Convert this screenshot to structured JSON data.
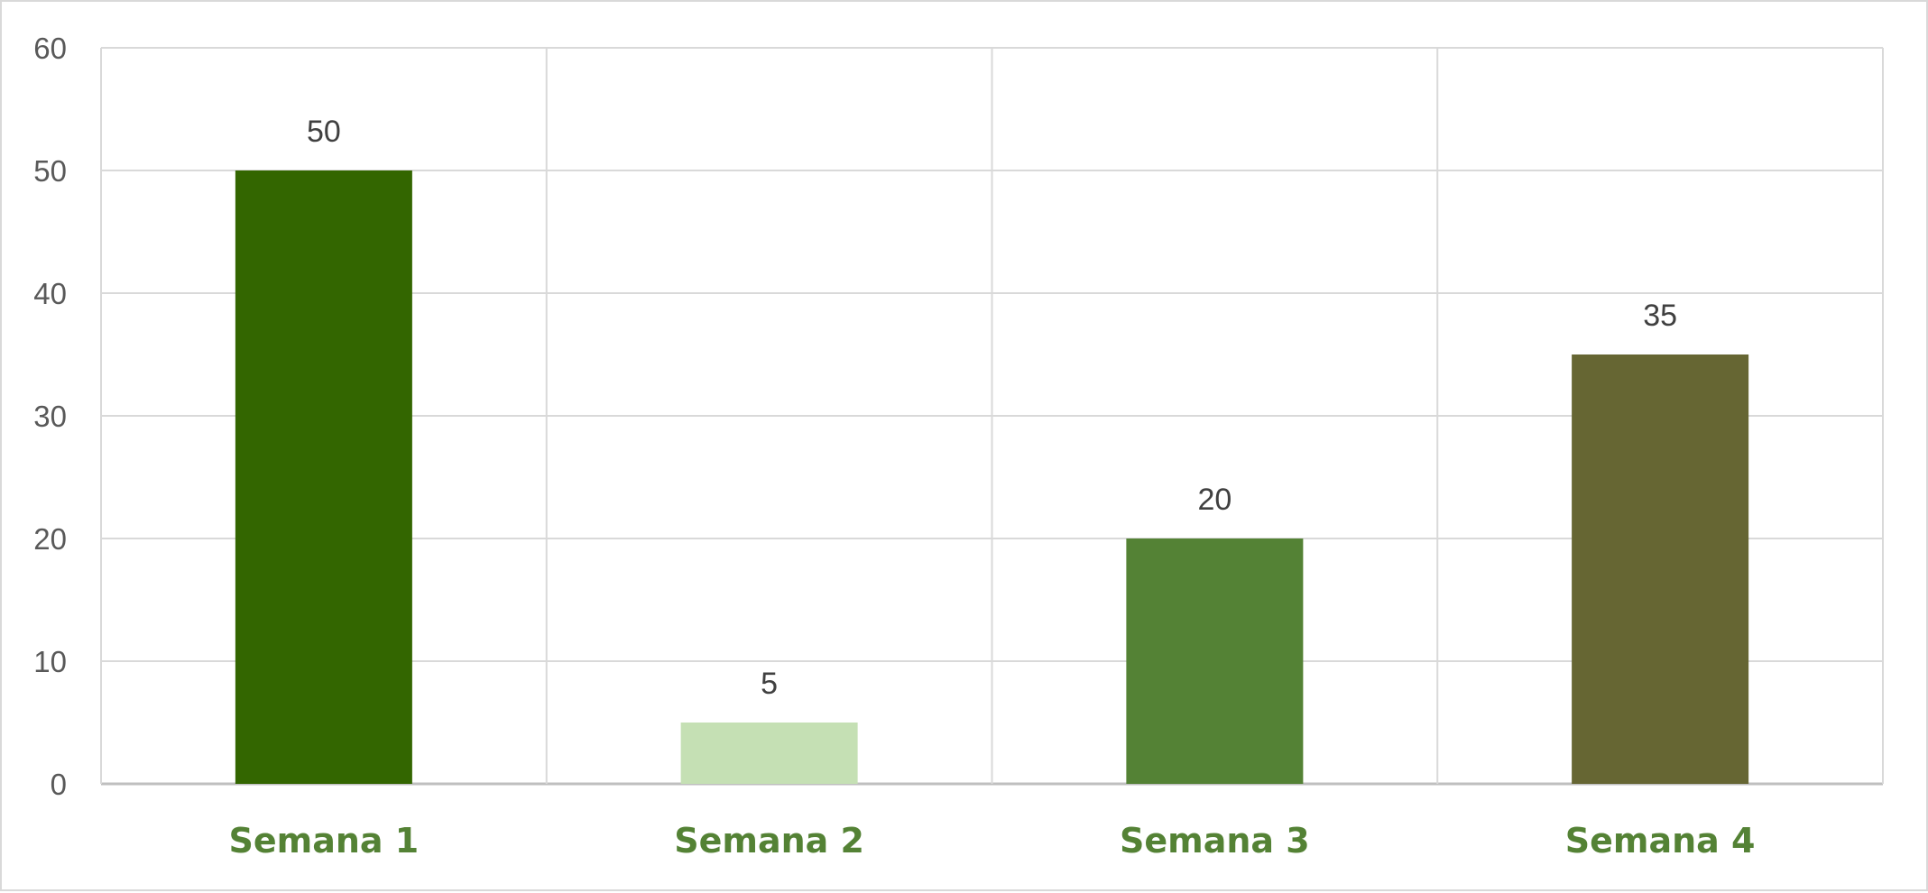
{
  "chart_data": {
    "type": "bar",
    "title": "",
    "xlabel": "",
    "ylabel": "",
    "categories": [
      "Semana 1",
      "Semana 2",
      "Semana 3",
      "Semana 4"
    ],
    "values": [
      50,
      5,
      20,
      35
    ],
    "bar_colors": [
      "#336600",
      "#c5e0b4",
      "#548235",
      "#666633"
    ],
    "data_labels": [
      "50",
      "5",
      "20",
      "35"
    ],
    "ylim": [
      0,
      60
    ],
    "yticks": [
      0,
      10,
      20,
      30,
      40,
      50,
      60
    ],
    "ytick_labels": [
      "0",
      "10",
      "20",
      "30",
      "40",
      "50",
      "60"
    ],
    "grid": true,
    "legend": "none",
    "category_label_color": "#548235",
    "gridline_color": "#d9d9d9"
  }
}
